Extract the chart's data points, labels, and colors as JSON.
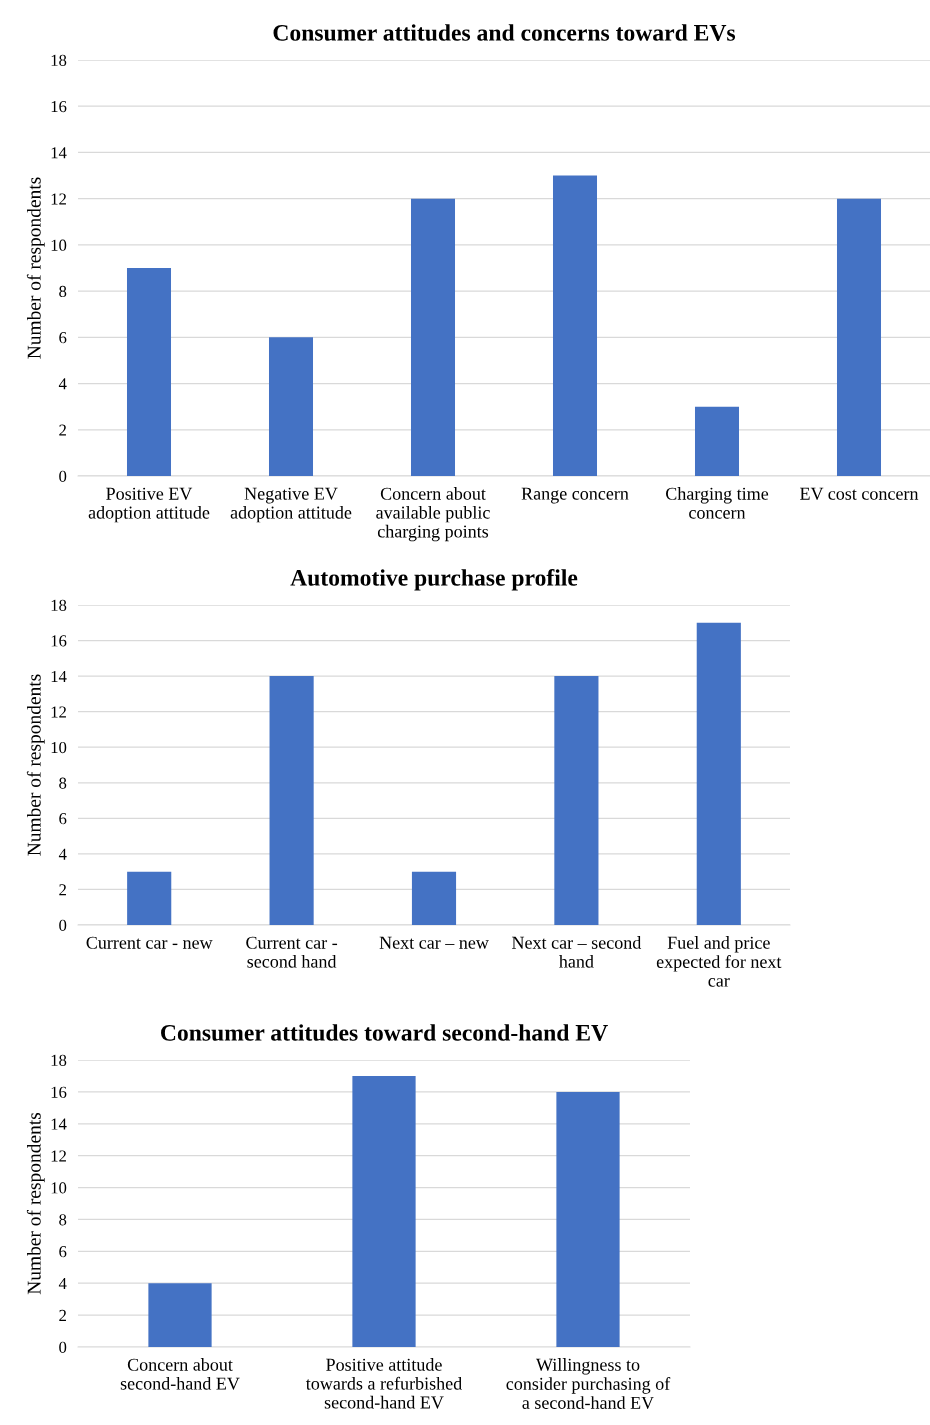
{
  "chart_data": [
    {
      "type": "bar",
      "title": "Consumer attitudes and concerns toward EVs",
      "ylabel": "Number of respondents",
      "categories": [
        "Positive EV adoption attitude",
        "Negative EV adoption attitude",
        "Concern about available public charging points",
        "Range concern",
        "Charging time concern",
        "EV cost concern"
      ],
      "values": [
        9,
        6,
        12,
        13,
        3,
        12
      ],
      "color": "#4472c4",
      "ylim": [
        0,
        18
      ],
      "yticks": [
        0,
        2,
        4,
        6,
        8,
        10,
        12,
        14,
        16,
        18
      ],
      "grid": "y"
    },
    {
      "type": "bar",
      "title": "Automotive purchase profile",
      "ylabel": "Number of respondents",
      "categories": [
        "Current car - new",
        "Current car - second hand",
        "Next car – new",
        "Next car – second hand",
        "Fuel and price expected for next car"
      ],
      "values": [
        3,
        14,
        3,
        14,
        17
      ],
      "color": "#4472c4",
      "ylim": [
        0,
        18
      ],
      "yticks": [
        0,
        2,
        4,
        6,
        8,
        10,
        12,
        14,
        16,
        18
      ],
      "grid": "y"
    },
    {
      "type": "bar",
      "title": "Consumer attitudes toward second-hand EV",
      "ylabel": "Number of respondents",
      "categories": [
        "Concern about second-hand EV",
        "Positive attitude towards a refurbished second-hand EV",
        "Willingness to consider purchasing of a second-hand EV"
      ],
      "values": [
        4,
        17,
        16
      ],
      "color": "#4472c4",
      "ylim": [
        0,
        18
      ],
      "yticks": [
        0,
        2,
        4,
        6,
        8,
        10,
        12,
        14,
        16,
        18
      ],
      "grid": "y"
    }
  ]
}
